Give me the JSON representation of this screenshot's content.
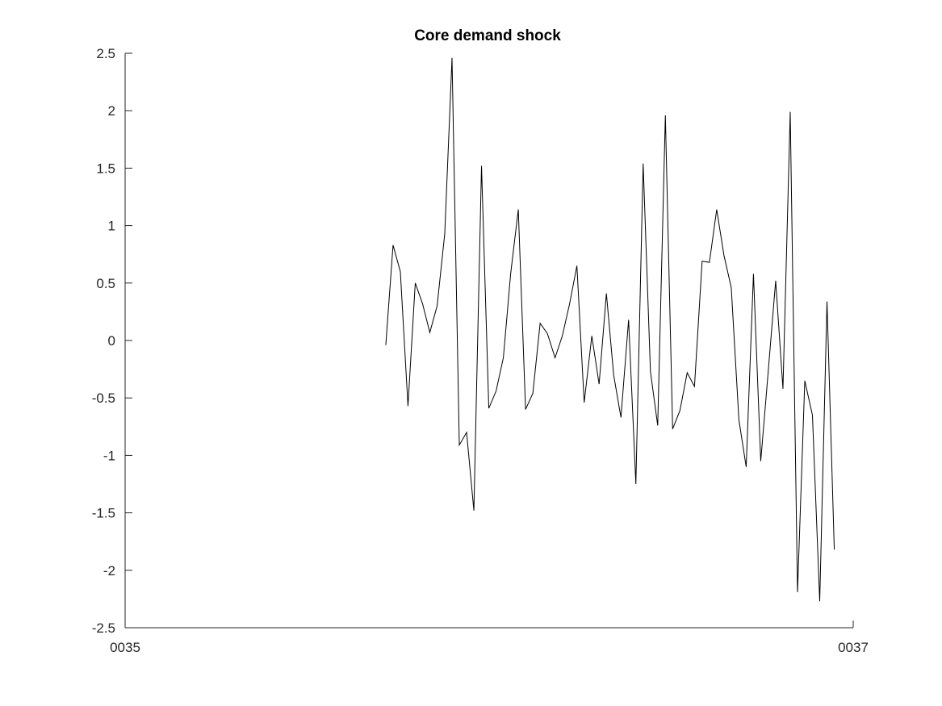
{
  "chart_data": {
    "type": "line",
    "title": "Core demand shock",
    "x": [
      35.716,
      35.736,
      35.756,
      35.777,
      35.797,
      35.817,
      35.837,
      35.857,
      35.878,
      35.898,
      35.918,
      35.938,
      35.958,
      35.979,
      35.999,
      36.019,
      36.039,
      36.059,
      36.08,
      36.1,
      36.12,
      36.14,
      36.16,
      36.181,
      36.201,
      36.221,
      36.241,
      36.261,
      36.282,
      36.302,
      36.322,
      36.342,
      36.362,
      36.383,
      36.403,
      36.423,
      36.443,
      36.463,
      36.484,
      36.504,
      36.524,
      36.544,
      36.564,
      36.585,
      36.605,
      36.625,
      36.645,
      36.665,
      36.686,
      36.706,
      36.726,
      36.746,
      36.766,
      36.787,
      36.807,
      36.827,
      36.847,
      36.867,
      36.888,
      36.908,
      36.928,
      36.948
    ],
    "values": [
      -0.04,
      0.83,
      0.6,
      -0.57,
      0.5,
      0.32,
      0.07,
      0.3,
      0.93,
      2.46,
      -0.91,
      -0.8,
      -1.48,
      1.52,
      -0.59,
      -0.44,
      -0.15,
      0.58,
      1.14,
      -0.6,
      -0.46,
      0.15,
      0.06,
      -0.15,
      0.04,
      0.32,
      0.65,
      -0.54,
      0.04,
      -0.38,
      0.41,
      -0.3,
      -0.67,
      0.18,
      -1.25,
      1.54,
      -0.27,
      -0.74,
      1.96,
      -0.77,
      -0.61,
      -0.28,
      -0.4,
      0.69,
      0.68,
      1.14,
      0.74,
      0.46,
      -0.69,
      -1.1,
      0.58,
      -1.05,
      -0.29,
      0.52,
      -0.42,
      1.99,
      -2.19,
      -0.35,
      -0.65,
      -2.27,
      0.34,
      -1.82
    ],
    "color": "#000000",
    "xlim": [
      35,
      37
    ],
    "xticks": [
      {
        "value": 35,
        "label": "0035"
      },
      {
        "value": 37,
        "label": "0037"
      }
    ],
    "ylim": [
      -2.5,
      2.5
    ],
    "yticks": [
      -2.5,
      -2,
      -1.5,
      -1,
      -0.5,
      0,
      0.5,
      1,
      1.5,
      2,
      2.5
    ]
  }
}
